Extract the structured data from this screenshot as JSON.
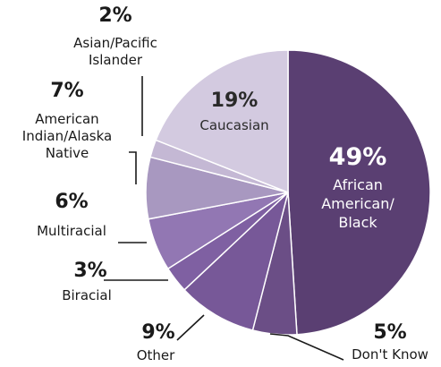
{
  "chart_data": {
    "type": "pie",
    "title": "",
    "slices": [
      {
        "label": "African American/ Black",
        "label_lines": [
          "African",
          "American/",
          "Black"
        ],
        "value": 49,
        "value_label": "49%",
        "color": "#5a3f72"
      },
      {
        "label": "Don't Know",
        "label_lines": [
          "Don't Know"
        ],
        "value": 5,
        "value_label": "5%",
        "color": "#6b4e86"
      },
      {
        "label": "Other",
        "label_lines": [
          "Other"
        ],
        "value": 9,
        "value_label": "9%",
        "color": "#775898"
      },
      {
        "label": "Biracial",
        "label_lines": [
          "Biracial"
        ],
        "value": 3,
        "value_label": "3%",
        "color": "#7f60a2"
      },
      {
        "label": "Multiracial",
        "label_lines": [
          "Multiracial"
        ],
        "value": 6,
        "value_label": "6%",
        "color": "#9277b3"
      },
      {
        "label": "American Indian/Alaska Native",
        "label_lines": [
          "American",
          "Indian/Alaska",
          "Native"
        ],
        "value": 7,
        "value_label": "7%",
        "color": "#a898c0"
      },
      {
        "label": "Asian/Pacific Islander",
        "label_lines": [
          "Asian/Pacific",
          "Islander"
        ],
        "value": 2,
        "value_label": "2%",
        "color": "#c4b8d4"
      },
      {
        "label": "Caucasian",
        "label_lines": [
          "Caucasian"
        ],
        "value": 19,
        "value_label": "19%",
        "color": "#d3cae0"
      }
    ],
    "start_angle_deg": 0,
    "direction": "clockwise",
    "legend": "none"
  }
}
